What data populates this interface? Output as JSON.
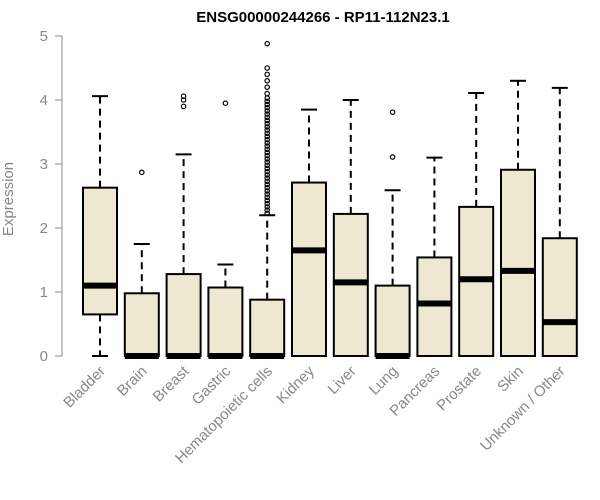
{
  "chart_data": {
    "type": "boxplot",
    "title": "ENSG00000244266 - RP11-112N23.1",
    "xlabel": "",
    "ylabel": "Expression",
    "ylim": [
      0,
      5
    ],
    "yticks": [
      0,
      1,
      2,
      3,
      4,
      5
    ],
    "grid": false,
    "legend": "none",
    "box_fill": "#efe8d0",
    "box_stroke": "#000000",
    "categories": [
      "Bladder",
      "Brain",
      "Breast",
      "Gastric",
      "Hematopoietic cells",
      "Kidney",
      "Liver",
      "Lung",
      "Pancreas",
      "Prostate",
      "Skin",
      "Unknown / Other"
    ],
    "boxes": [
      {
        "min": 0.0,
        "q1": 0.65,
        "median": 1.1,
        "q3": 2.63,
        "max": 4.06,
        "outliers": []
      },
      {
        "min": 0.0,
        "q1": 0.0,
        "median": 0.0,
        "q3": 0.98,
        "max": 1.75,
        "outliers": [
          2.87
        ]
      },
      {
        "min": 0.0,
        "q1": 0.0,
        "median": 0.0,
        "q3": 1.28,
        "max": 3.15,
        "outliers": [
          3.9,
          4.0,
          4.06
        ]
      },
      {
        "min": 0.0,
        "q1": 0.0,
        "median": 0.0,
        "q3": 1.07,
        "max": 1.43,
        "outliers": [
          3.95
        ]
      },
      {
        "min": 0.0,
        "q1": 0.0,
        "median": 0.0,
        "q3": 0.88,
        "max": 2.2,
        "outliers": [
          2.23,
          2.28,
          2.33,
          2.38,
          2.43,
          2.48,
          2.53,
          2.58,
          2.63,
          2.68,
          2.73,
          2.78,
          2.83,
          2.88,
          2.93,
          2.98,
          3.03,
          3.08,
          3.13,
          3.18,
          3.23,
          3.28,
          3.33,
          3.38,
          3.43,
          3.48,
          3.53,
          3.58,
          3.63,
          3.68,
          3.73,
          3.78,
          3.83,
          3.88,
          3.93,
          3.98,
          4.03,
          4.1,
          4.2,
          4.3,
          4.4,
          4.5,
          4.88
        ]
      },
      {
        "min": 0.0,
        "q1": 0.0,
        "median": 1.65,
        "q3": 2.71,
        "max": 3.85,
        "outliers": []
      },
      {
        "min": 0.0,
        "q1": 0.0,
        "median": 1.15,
        "q3": 2.22,
        "max": 4.0,
        "outliers": []
      },
      {
        "min": 0.0,
        "q1": 0.0,
        "median": 0.0,
        "q3": 1.1,
        "max": 2.59,
        "outliers": [
          3.11,
          3.81
        ]
      },
      {
        "min": 0.0,
        "q1": 0.0,
        "median": 0.82,
        "q3": 1.54,
        "max": 3.1,
        "outliers": []
      },
      {
        "min": 0.0,
        "q1": 0.0,
        "median": 1.2,
        "q3": 2.33,
        "max": 4.11,
        "outliers": []
      },
      {
        "min": 0.0,
        "q1": 0.0,
        "median": 1.33,
        "q3": 2.91,
        "max": 4.3,
        "outliers": []
      },
      {
        "min": 0.0,
        "q1": 0.0,
        "median": 0.53,
        "q3": 1.84,
        "max": 4.19,
        "outliers": []
      }
    ]
  }
}
